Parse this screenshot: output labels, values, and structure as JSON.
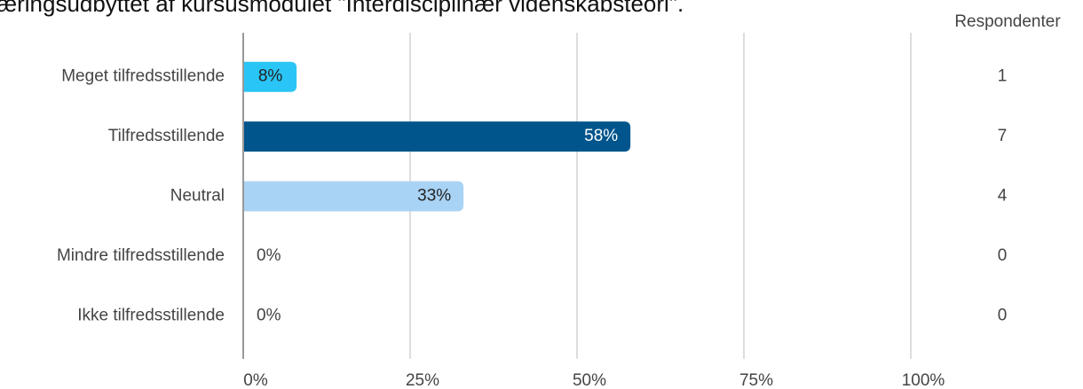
{
  "chart_data": {
    "type": "barh",
    "title": "æringsudbyttet af kursusmodulet \"Interdisciplinær videnskabsteori\".",
    "categories": [
      "Meget tilfredsstillende",
      "Tilfredsstillende",
      "Neutral",
      "Mindre tilfredsstillende",
      "Ikke tilfredsstillende"
    ],
    "values": [
      8,
      58,
      33,
      0,
      0
    ],
    "value_labels": [
      "8%",
      "58%",
      "33%",
      "0%",
      "0%"
    ],
    "colors": [
      "#29c5f6",
      "#00558c",
      "#a9d3f5",
      "#a9d3f5",
      "#a9d3f5"
    ],
    "value_label_colors": [
      "#222222",
      "#ffffff",
      "#222222",
      "#444444",
      "#444444"
    ],
    "xlim": [
      0,
      100
    ],
    "xticks": [
      {
        "value": 0,
        "label": "0%"
      },
      {
        "value": 25,
        "label": "25%"
      },
      {
        "value": 50,
        "label": "50%"
      },
      {
        "value": 75,
        "label": "75%"
      },
      {
        "value": 100,
        "label": "100%"
      }
    ],
    "grid": true,
    "respondents": {
      "label": "Respondenter",
      "values": [
        1,
        7,
        4,
        0,
        0
      ]
    }
  }
}
